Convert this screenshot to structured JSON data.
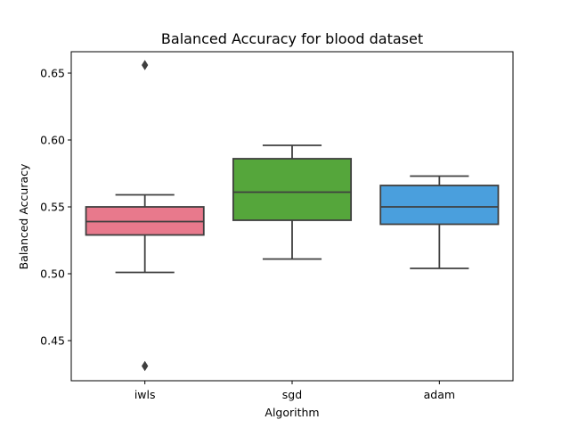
{
  "chart_data": {
    "type": "box",
    "title": "Balanced Accuracy for blood dataset",
    "xlabel": "Algorithm",
    "ylabel": "Balanced Accuracy",
    "ylim": [
      0.42,
      0.666
    ],
    "yticks": [
      "0.45",
      "0.50",
      "0.55",
      "0.60",
      "0.65"
    ],
    "grid": false,
    "legend": "none",
    "categories": [
      "iwls",
      "sgd",
      "adam"
    ],
    "boxes": [
      {
        "category": "iwls",
        "whisker_low": 0.501,
        "q1": 0.529,
        "median": 0.539,
        "q3": 0.55,
        "whisker_high": 0.559,
        "outliers": [
          0.656,
          0.431
        ],
        "color": "#e8798c"
      },
      {
        "category": "sgd",
        "whisker_low": 0.511,
        "q1": 0.54,
        "median": 0.561,
        "q3": 0.586,
        "whisker_high": 0.596,
        "outliers": [],
        "color": "#55a63b"
      },
      {
        "category": "adam",
        "whisker_low": 0.504,
        "q1": 0.537,
        "median": 0.55,
        "q3": 0.566,
        "whisker_high": 0.573,
        "outliers": [],
        "color": "#4a9fdd"
      }
    ],
    "line_color": "#3f3f3f"
  }
}
